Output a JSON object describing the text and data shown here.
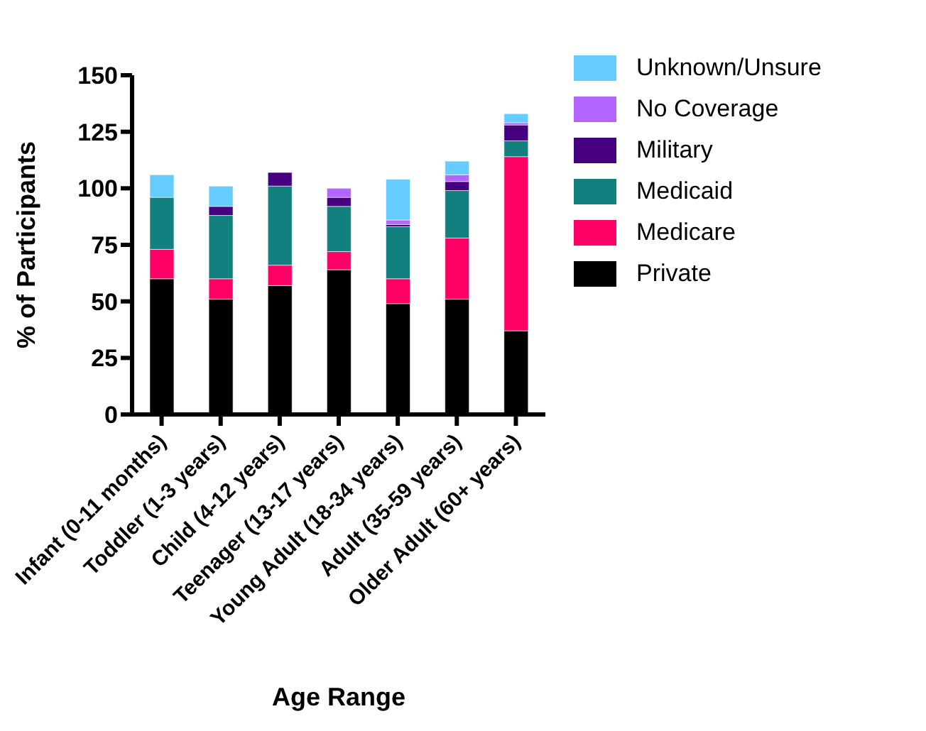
{
  "chart_data": {
    "type": "bar",
    "stacked": true,
    "xlabel": "Age Range",
    "ylabel": "% of Participants",
    "categories": [
      "Infant (0-11 months)",
      "Toddler (1-3 years)",
      "Child (4-12 years)",
      "Teenager (13-17 years)",
      "Young Adult (18-34 years)",
      "Adult (35-59 years)",
      "Older Adult (60+ years)"
    ],
    "series": [
      {
        "name": "Private",
        "color": "#000000",
        "values": [
          60,
          51,
          57,
          64,
          49,
          51,
          37
        ]
      },
      {
        "name": "Medicare",
        "color": "#ff0066",
        "values": [
          13,
          9,
          9,
          8,
          11,
          27,
          77
        ]
      },
      {
        "name": "Medicaid",
        "color": "#138080",
        "values": [
          23,
          28,
          35,
          20,
          23,
          21,
          7
        ]
      },
      {
        "name": "Military",
        "color": "#46007f",
        "values": [
          0,
          4,
          6,
          4,
          1,
          4,
          7
        ]
      },
      {
        "name": "No Coverage",
        "color": "#b266ff",
        "values": [
          0,
          0,
          0,
          4,
          2,
          3,
          1
        ]
      },
      {
        "name": "Unknown/Unsure",
        "color": "#66ccff",
        "values": [
          10,
          9,
          0,
          0,
          18,
          6,
          4
        ]
      }
    ],
    "ylim": [
      0,
      150
    ],
    "yticks": [
      0,
      25,
      50,
      75,
      100,
      125,
      150
    ],
    "grid": false,
    "legend": "right"
  }
}
